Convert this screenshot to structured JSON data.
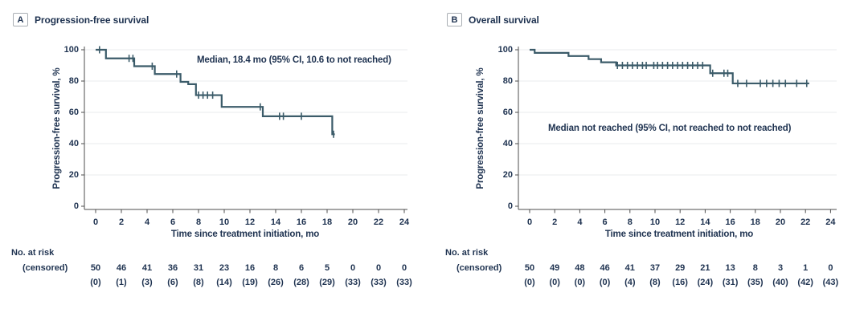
{
  "colors": {
    "ink": "#1e3250",
    "curve": "#3b5b69",
    "grid": "#e8ebed",
    "axis": "#4d4d4d",
    "panel_key_border": "#a9aeb3",
    "background": "#ffffff"
  },
  "chart_data": [
    {
      "type": "line",
      "subtype": "kaplan-meier-step",
      "panel_label": "A",
      "title": "Progression-free survival",
      "annotation": "Median, 18.4 mo (95% CI, 10.6 to not reached)",
      "xlabel": "Time since treatment initiation, mo",
      "ylabel": "Progression-free survival, %",
      "xlim": [
        0,
        24
      ],
      "ylim": [
        0,
        100
      ],
      "xticks": [
        0,
        2,
        4,
        6,
        8,
        10,
        12,
        14,
        16,
        18,
        20,
        22,
        24
      ],
      "yticks": [
        0,
        20,
        40,
        60,
        80,
        100
      ],
      "grid": "horizontal gridlines at y ticks",
      "legend": "none",
      "steps_pct": [
        [
          0,
          100
        ],
        [
          0.8,
          94.5
        ],
        [
          3.0,
          89.5
        ],
        [
          4.6,
          84.5
        ],
        [
          6.6,
          79.5
        ],
        [
          7.2,
          78
        ],
        [
          7.8,
          71
        ],
        [
          9.8,
          63.5
        ],
        [
          13.0,
          57.5
        ],
        [
          18.4,
          46
        ]
      ],
      "curve_end_mo": 18.6,
      "censor_marks": [
        [
          0.3,
          100
        ],
        [
          2.6,
          94.5
        ],
        [
          2.9,
          94.5
        ],
        [
          4.4,
          89.5
        ],
        [
          6.3,
          84.5
        ],
        [
          8.0,
          71
        ],
        [
          8.35,
          71
        ],
        [
          8.7,
          71
        ],
        [
          9.1,
          71
        ],
        [
          9.8,
          67
        ],
        [
          12.8,
          63.5
        ],
        [
          14.3,
          57.5
        ],
        [
          14.6,
          57.5
        ],
        [
          16.0,
          57.5
        ],
        [
          18.5,
          46
        ]
      ],
      "risk_table": {
        "label_line1": "No. at risk",
        "label_line2": "(censored)",
        "times": [
          0,
          2,
          4,
          6,
          8,
          10,
          12,
          14,
          16,
          18,
          20,
          22,
          24
        ],
        "at_risk": [
          "50",
          "46",
          "41",
          "36",
          "31",
          "23",
          "16",
          "8",
          "6",
          "5",
          "0",
          "0",
          "0"
        ],
        "censored": [
          "(0)",
          "(1)",
          "(3)",
          "(6)",
          "(8)",
          "(14)",
          "(19)",
          "(26)",
          "(28)",
          "(29)",
          "(33)",
          "(33)",
          "(33)"
        ]
      }
    },
    {
      "type": "line",
      "subtype": "kaplan-meier-step",
      "panel_label": "B",
      "title": "Overall survival",
      "annotation": "Median not reached (95% CI, not reached to not reached)",
      "xlabel": "Time since treatment initiation, mo",
      "ylabel": "Progression-free survival, %",
      "xlim": [
        0,
        24
      ],
      "ylim": [
        0,
        100
      ],
      "xticks": [
        0,
        2,
        4,
        6,
        8,
        10,
        12,
        14,
        16,
        18,
        20,
        22,
        24
      ],
      "yticks": [
        0,
        20,
        40,
        60,
        80,
        100
      ],
      "grid": "horizontal gridlines at y ticks",
      "legend": "none",
      "steps_pct": [
        [
          0,
          100
        ],
        [
          0.4,
          98
        ],
        [
          3.1,
          96
        ],
        [
          4.7,
          94
        ],
        [
          5.7,
          92
        ],
        [
          6.9,
          90
        ],
        [
          14.4,
          85
        ],
        [
          16.2,
          78.5
        ]
      ],
      "curve_end_mo": 22.3,
      "censor_marks": [
        [
          7.0,
          90
        ],
        [
          7.4,
          90
        ],
        [
          7.8,
          90
        ],
        [
          8.2,
          90
        ],
        [
          8.6,
          90
        ],
        [
          9.0,
          90
        ],
        [
          9.3,
          90
        ],
        [
          9.9,
          90
        ],
        [
          10.2,
          90
        ],
        [
          10.6,
          90
        ],
        [
          11.0,
          90
        ],
        [
          11.4,
          90
        ],
        [
          11.8,
          90
        ],
        [
          12.2,
          90
        ],
        [
          12.6,
          90
        ],
        [
          13.0,
          90
        ],
        [
          13.4,
          90
        ],
        [
          13.8,
          90
        ],
        [
          14.6,
          85
        ],
        [
          15.5,
          85
        ],
        [
          15.8,
          85
        ],
        [
          16.6,
          78.5
        ],
        [
          17.3,
          78.5
        ],
        [
          18.4,
          78.5
        ],
        [
          18.9,
          78.5
        ],
        [
          19.4,
          78.5
        ],
        [
          19.9,
          78.5
        ],
        [
          20.4,
          78.5
        ],
        [
          21.3,
          78.5
        ],
        [
          22.1,
          78.5
        ]
      ],
      "risk_table": {
        "label_line1": "No. at risk",
        "label_line2": "(censored)",
        "times": [
          0,
          2,
          4,
          6,
          8,
          10,
          12,
          14,
          16,
          18,
          20,
          22,
          24
        ],
        "at_risk": [
          "50",
          "49",
          "48",
          "46",
          "41",
          "37",
          "29",
          "21",
          "13",
          "8",
          "3",
          "1",
          "0"
        ],
        "censored": [
          "(0)",
          "(0)",
          "(0)",
          "(0)",
          "(4)",
          "(8)",
          "(16)",
          "(24)",
          "(31)",
          "(35)",
          "(40)",
          "(42)",
          "(43)"
        ]
      }
    }
  ]
}
